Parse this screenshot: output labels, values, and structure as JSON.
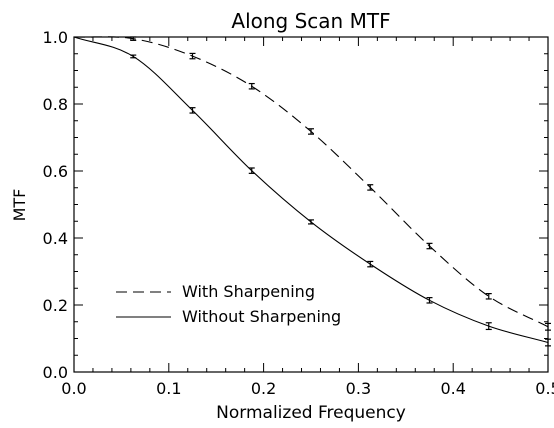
{
  "chart_data": {
    "type": "line",
    "title": "Along Scan MTF",
    "xlabel": "Normalized Frequency",
    "ylabel": "MTF",
    "xlim": [
      0.0,
      0.5
    ],
    "ylim": [
      0.0,
      1.0
    ],
    "x_ticks": [
      "0.0",
      "0.1",
      "0.2",
      "0.3",
      "0.4",
      "0.5"
    ],
    "y_ticks": [
      "0.0",
      "0.2",
      "0.4",
      "0.6",
      "0.8",
      "1.0"
    ],
    "grid": false,
    "legend_position": "bottom-left",
    "x": [
      0.0,
      0.0625,
      0.125,
      0.1875,
      0.25,
      0.3125,
      0.375,
      0.4375,
      0.5
    ],
    "series": [
      {
        "name": "With Sharpening",
        "style": "dashed",
        "values": [
          1.0,
          0.995,
          0.943,
          0.853,
          0.718,
          0.551,
          0.376,
          0.226,
          0.135
        ],
        "errors": [
          0.0,
          0.005,
          0.008,
          0.008,
          0.008,
          0.008,
          0.008,
          0.008,
          0.01
        ]
      },
      {
        "name": "Without Sharpening",
        "style": "solid",
        "values": [
          1.0,
          0.942,
          0.781,
          0.601,
          0.448,
          0.322,
          0.214,
          0.137,
          0.088
        ],
        "errors": [
          0.0,
          0.004,
          0.008,
          0.008,
          0.006,
          0.008,
          0.008,
          0.01,
          0.01
        ]
      }
    ]
  }
}
